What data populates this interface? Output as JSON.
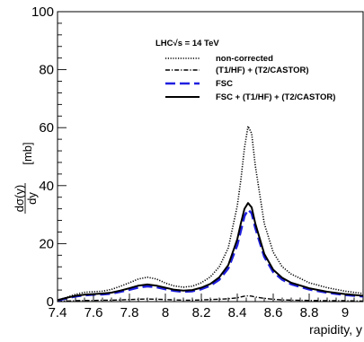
{
  "chart_data": {
    "type": "line",
    "title": "",
    "xlabel": "rapidity, y",
    "ylabel": "dσ(y)/dy [mb]",
    "ylabel_parts": {
      "numerator": "dσ(y)",
      "denominator": "dy",
      "unit": "[mb]"
    },
    "xlim": [
      7.4,
      9.1
    ],
    "ylim": [
      0,
      100
    ],
    "xticks": [
      "7.4",
      "7.6",
      "7.8",
      "8",
      "8.2",
      "8.4",
      "8.6",
      "8.8",
      "9"
    ],
    "yticks": [
      "0",
      "20",
      "40",
      "60",
      "80",
      "100"
    ],
    "legend_header": "LHC√s = 14 TeV",
    "legend_position": "top-right",
    "grid": false,
    "x": [
      7.4,
      7.45,
      7.5,
      7.55,
      7.6,
      7.65,
      7.7,
      7.75,
      7.8,
      7.85,
      7.9,
      7.95,
      8.0,
      8.05,
      8.1,
      8.15,
      8.2,
      8.25,
      8.3,
      8.35,
      8.4,
      8.42,
      8.44,
      8.46,
      8.48,
      8.5,
      8.55,
      8.6,
      8.65,
      8.7,
      8.8,
      8.9,
      9.0,
      9.1
    ],
    "series": [
      {
        "name": "non-corrected",
        "style": "dotted",
        "color": "#000000",
        "values": [
          0.5,
          1.5,
          2.5,
          3.2,
          3.4,
          3.6,
          4.2,
          5.3,
          6.5,
          7.8,
          8.4,
          7.8,
          6.4,
          5.4,
          5.0,
          5.3,
          6.5,
          8.5,
          12.0,
          18.5,
          33.0,
          42.0,
          53.0,
          60.5,
          58.0,
          47.0,
          27.0,
          17.0,
          12.0,
          9.5,
          6.5,
          4.8,
          3.6,
          2.8
        ]
      },
      {
        "name": "(T1/HF) + (T2/CASTOR)",
        "style": "dash-dot",
        "color": "#000000",
        "values": [
          0.1,
          0.2,
          0.3,
          0.4,
          0.4,
          0.5,
          0.5,
          0.6,
          0.7,
          0.8,
          0.9,
          0.8,
          0.7,
          0.6,
          0.5,
          0.5,
          0.6,
          0.7,
          0.8,
          1.0,
          1.3,
          1.6,
          1.9,
          2.0,
          1.9,
          1.6,
          1.1,
          0.8,
          0.6,
          0.5,
          0.4,
          0.3,
          0.3,
          0.2
        ]
      },
      {
        "name": "FSC",
        "style": "dashed",
        "color": "#1f1fe0",
        "values": [
          0.4,
          1.1,
          1.8,
          2.2,
          2.4,
          2.5,
          2.8,
          3.4,
          4.1,
          4.9,
          5.3,
          5.0,
          4.3,
          3.7,
          3.4,
          3.6,
          4.3,
          5.5,
          7.6,
          11.5,
          19.5,
          24.5,
          29.5,
          31.7,
          30.5,
          25.5,
          15.5,
          10.2,
          7.6,
          6.0,
          4.2,
          3.1,
          2.3,
          1.8
        ]
      },
      {
        "name": "FSC + (T1/HF) + (T2/CASTOR)",
        "style": "solid",
        "color": "#000000",
        "values": [
          0.5,
          1.3,
          2.0,
          2.4,
          2.6,
          2.8,
          3.1,
          3.8,
          4.6,
          5.5,
          5.9,
          5.5,
          4.8,
          4.1,
          3.8,
          4.0,
          4.8,
          6.1,
          8.4,
          12.6,
          21.5,
          27.0,
          32.0,
          34.0,
          32.5,
          27.0,
          16.5,
          11.0,
          8.2,
          6.5,
          4.6,
          3.4,
          2.6,
          2.0
        ]
      }
    ]
  }
}
